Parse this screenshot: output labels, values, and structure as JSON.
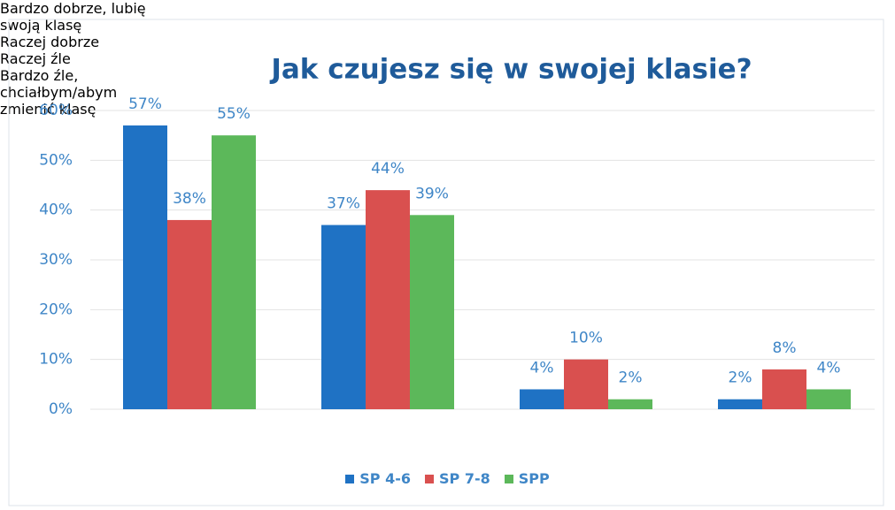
{
  "chart_data": {
    "type": "bar",
    "title": "Jak czujesz się w swojej klasie?",
    "categories": [
      "Bardzo dobrze, lubię swoją klasę",
      "Raczej dobrze",
      "Raczej źle",
      "Bardzo źle, chciałbym/abym zmienić klasę"
    ],
    "series": [
      {
        "name": "SP 4-6",
        "color": "#1f72c4",
        "values": [
          57,
          37,
          4,
          2
        ],
        "value_labels": [
          "57%",
          "37%",
          "4%",
          "2%"
        ]
      },
      {
        "name": "SP 7-8",
        "color": "#d9504f",
        "values": [
          38,
          44,
          10,
          8
        ],
        "value_labels": [
          "38%",
          "44%",
          "10%",
          "8%"
        ]
      },
      {
        "name": "SPP",
        "color": "#5cb85a",
        "values": [
          55,
          39,
          2,
          4
        ],
        "value_labels": [
          "55%",
          "39%",
          "2%",
          "4%"
        ]
      }
    ],
    "ylim": [
      0,
      60
    ],
    "yticks": [
      {
        "value": 0,
        "label": "0%"
      },
      {
        "value": 10,
        "label": "10%"
      },
      {
        "value": 20,
        "label": "20%"
      },
      {
        "value": 30,
        "label": "30%"
      },
      {
        "value": 40,
        "label": "40%"
      },
      {
        "value": 50,
        "label": "50%"
      },
      {
        "value": 60,
        "label": "60%"
      }
    ],
    "grid": true,
    "legend": "bottom"
  }
}
